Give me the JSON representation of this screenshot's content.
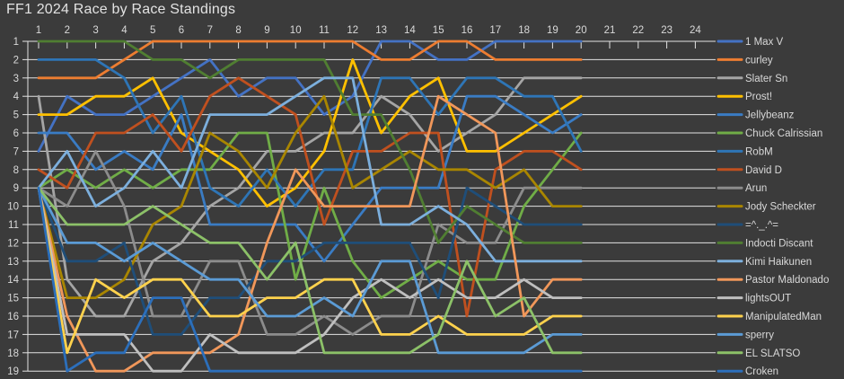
{
  "title": "FF1 2024 Race by Race Standings",
  "colors": {
    "background": "#3b3b3b",
    "gridline": "#e3e3e3",
    "axis_text": "#d9d9d9",
    "title_text": "#e2e2e2"
  },
  "chart_data": {
    "type": "line",
    "subtype": "bump-standings",
    "title": "FF1 2024 Race by Race Standings",
    "grid": "horizontal",
    "legend_position": "right",
    "x_axis": {
      "position": "top",
      "ticks": [
        1,
        2,
        3,
        4,
        5,
        6,
        7,
        8,
        9,
        10,
        11,
        12,
        13,
        14,
        15,
        16,
        17,
        18,
        19,
        20,
        21,
        22,
        23,
        24
      ],
      "races_with_data": 20
    },
    "y_axis": {
      "ticks": [
        1,
        2,
        3,
        4,
        5,
        6,
        7,
        8,
        9,
        10,
        11,
        12,
        13,
        14,
        15,
        16,
        17,
        18,
        19
      ],
      "min": 1,
      "max": 19,
      "inverted": true,
      "meaning": "standings position (1 = leader)"
    },
    "series": [
      {
        "name": "1 Max V",
        "color": "#4472C4",
        "positions": [
          7,
          4,
          5,
          5,
          4,
          3,
          2,
          4,
          3,
          3,
          5,
          4,
          1,
          1,
          2,
          2,
          1,
          1,
          1,
          1
        ]
      },
      {
        "name": "curley",
        "color": "#ED7D31",
        "positions": [
          3,
          3,
          3,
          2,
          1,
          1,
          1,
          1,
          1,
          1,
          1,
          1,
          2,
          2,
          1,
          1,
          2,
          2,
          2,
          2
        ]
      },
      {
        "name": "Slater Sn",
        "color": "#A5A5A5",
        "positions": [
          4,
          14,
          16,
          16,
          13,
          12,
          10,
          9,
          7,
          7,
          6,
          6,
          4,
          5,
          7,
          6,
          5,
          3,
          3,
          3
        ]
      },
      {
        "name": "Prost!",
        "color": "#FFC000",
        "positions": [
          5,
          5,
          4,
          4,
          3,
          6,
          7,
          8,
          10,
          9,
          7,
          2,
          6,
          4,
          3,
          7,
          7,
          6,
          5,
          4
        ]
      },
      {
        "name": "Jellybeanz",
        "color": "#3A7CC4",
        "positions": [
          6,
          6,
          8,
          7,
          8,
          5,
          11,
          11,
          11,
          11,
          13,
          11,
          9,
          9,
          9,
          4,
          4,
          5,
          6,
          5
        ]
      },
      {
        "name": "Chuck Calrissian",
        "color": "#70AD47",
        "positions": [
          9,
          8,
          9,
          8,
          9,
          8,
          8,
          6,
          6,
          14,
          9,
          13,
          15,
          14,
          13,
          14,
          14,
          10,
          8,
          6
        ]
      },
      {
        "name": "RobM",
        "color": "#2E75B6",
        "positions": [
          2,
          2,
          2,
          3,
          6,
          4,
          9,
          10,
          8,
          10,
          8,
          8,
          3,
          3,
          5,
          3,
          3,
          4,
          4,
          7
        ]
      },
      {
        "name": "David D",
        "color": "#C0501F",
        "positions": [
          8,
          9,
          6,
          6,
          5,
          7,
          4,
          3,
          4,
          5,
          11,
          7,
          7,
          6,
          6,
          16,
          8,
          7,
          7,
          8
        ]
      },
      {
        "name": "Arun",
        "color": "#8C8C8C",
        "positions": [
          9,
          10,
          7,
          10,
          16,
          16,
          13,
          13,
          17,
          17,
          16,
          17,
          16,
          16,
          11,
          12,
          12,
          9,
          9,
          9
        ]
      },
      {
        "name": "Jody Scheckter",
        "color": "#A98600",
        "positions": [
          9,
          15,
          15,
          14,
          11,
          10,
          6,
          7,
          9,
          6,
          4,
          9,
          8,
          7,
          8,
          8,
          9,
          8,
          10,
          10
        ]
      },
      {
        "name": "=^._.^=",
        "color": "#1F4E79",
        "positions": [
          9,
          13,
          13,
          12,
          17,
          17,
          15,
          15,
          13,
          13,
          12,
          12,
          12,
          12,
          15,
          9,
          10,
          11,
          11,
          11
        ]
      },
      {
        "name": "Indocti Discant",
        "color": "#507E32",
        "positions": [
          1,
          1,
          1,
          1,
          2,
          2,
          3,
          2,
          2,
          2,
          2,
          5,
          5,
          8,
          12,
          10,
          11,
          12,
          12,
          12
        ]
      },
      {
        "name": "Kimi Haikunen",
        "color": "#7CAFDD",
        "positions": [
          9,
          7,
          10,
          9,
          7,
          9,
          5,
          5,
          5,
          4,
          3,
          3,
          11,
          11,
          10,
          11,
          13,
          13,
          13,
          13
        ]
      },
      {
        "name": "Pastor Maldonado",
        "color": "#F1975A",
        "positions": [
          9,
          16,
          19,
          19,
          18,
          18,
          18,
          17,
          12,
          8,
          10,
          10,
          10,
          10,
          4,
          5,
          6,
          16,
          14,
          14
        ]
      },
      {
        "name": "lightsOUT",
        "color": "#BFBFBF",
        "positions": [
          9,
          17,
          17,
          17,
          19,
          19,
          17,
          18,
          18,
          18,
          17,
          15,
          14,
          15,
          14,
          15,
          15,
          14,
          15,
          15
        ]
      },
      {
        "name": "ManipulatedMan",
        "color": "#FFD24D",
        "positions": [
          9,
          18,
          14,
          15,
          14,
          14,
          16,
          16,
          15,
          15,
          14,
          14,
          17,
          17,
          16,
          17,
          17,
          17,
          16,
          16
        ]
      },
      {
        "name": "sperry",
        "color": "#5B9BD5",
        "positions": [
          9,
          12,
          12,
          13,
          12,
          13,
          14,
          14,
          16,
          16,
          15,
          16,
          13,
          13,
          18,
          18,
          18,
          18,
          17,
          17
        ]
      },
      {
        "name": "EL SLATSO",
        "color": "#8CC168",
        "positions": [
          9,
          11,
          11,
          11,
          10,
          11,
          12,
          12,
          14,
          12,
          18,
          18,
          18,
          18,
          17,
          13,
          16,
          15,
          18,
          18
        ]
      },
      {
        "name": "Croken",
        "color": "#2C6FBB",
        "positions": [
          9,
          19,
          18,
          18,
          15,
          15,
          19,
          19,
          19,
          19,
          19,
          19,
          19,
          19,
          19,
          19,
          19,
          19,
          19,
          19
        ]
      }
    ]
  }
}
